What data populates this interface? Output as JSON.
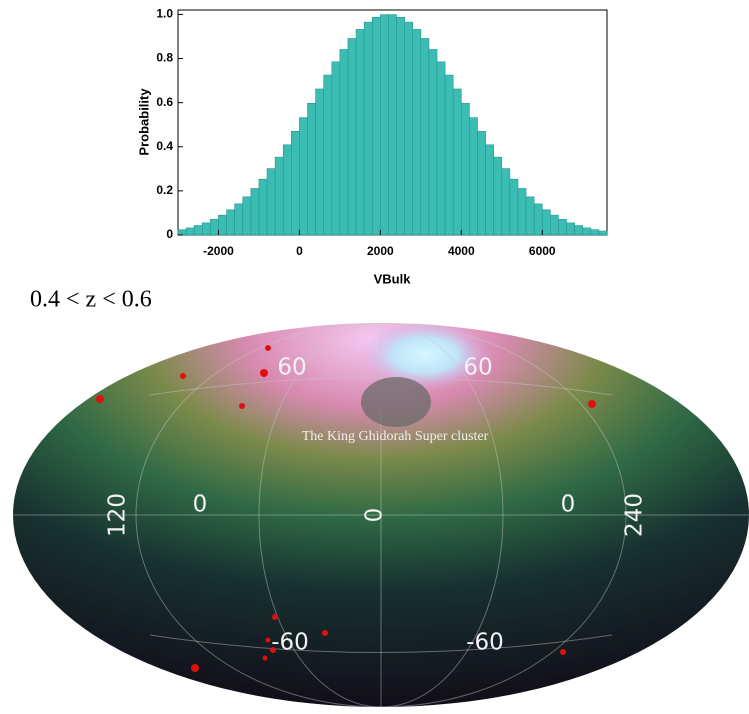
{
  "chart_data": {
    "type": "histogram",
    "xlabel": "VBulk",
    "ylabel": "Probability",
    "color": "#3bbdb4",
    "bins": [
      -3000,
      -2800,
      -2600,
      -2400,
      -2200,
      -2000,
      -1800,
      -1600,
      -1400,
      -1200,
      -1000,
      -800,
      -600,
      -400,
      -200,
      0,
      200,
      400,
      600,
      800,
      1000,
      1200,
      1400,
      1600,
      1800,
      2000,
      2200,
      2400,
      2600,
      2800,
      3000,
      3200,
      3400,
      3600,
      3800,
      4000,
      4200,
      4400,
      4600,
      4800,
      5000,
      5200,
      5400,
      5600,
      5800,
      6000,
      6200,
      6400,
      6600,
      6800,
      7000,
      7200,
      7400,
      7600
    ],
    "counts": [
      0.024,
      0.032,
      0.043,
      0.055,
      0.071,
      0.09,
      0.114,
      0.141,
      0.173,
      0.211,
      0.253,
      0.301,
      0.353,
      0.409,
      0.47,
      0.532,
      0.597,
      0.662,
      0.725,
      0.785,
      0.841,
      0.891,
      0.932,
      0.965,
      0.987,
      0.999,
      0.999,
      0.987,
      0.965,
      0.932,
      0.891,
      0.841,
      0.785,
      0.725,
      0.662,
      0.597,
      0.532,
      0.47,
      0.409,
      0.353,
      0.301,
      0.253,
      0.211,
      0.173,
      0.141,
      0.114,
      0.09,
      0.071,
      0.055,
      0.043,
      0.032,
      0.024,
      0.018
    ],
    "xlim": [
      -3000,
      7600
    ],
    "ylim": [
      0,
      1.02
    ],
    "xticks": [
      -2000,
      0,
      2000,
      4000,
      6000
    ],
    "yticks": [
      0,
      0.2,
      0.4,
      0.6,
      0.8,
      {
        "value": 1,
        "label": "1.0"
      }
    ]
  },
  "sky_map": {
    "title": "0.4 < z < 0.6",
    "annotation": "The King Ghidorah Super cluster",
    "labels": [
      "60",
      "60",
      "120",
      "0",
      "0",
      "0",
      "240",
      "-60",
      "-60"
    ]
  }
}
